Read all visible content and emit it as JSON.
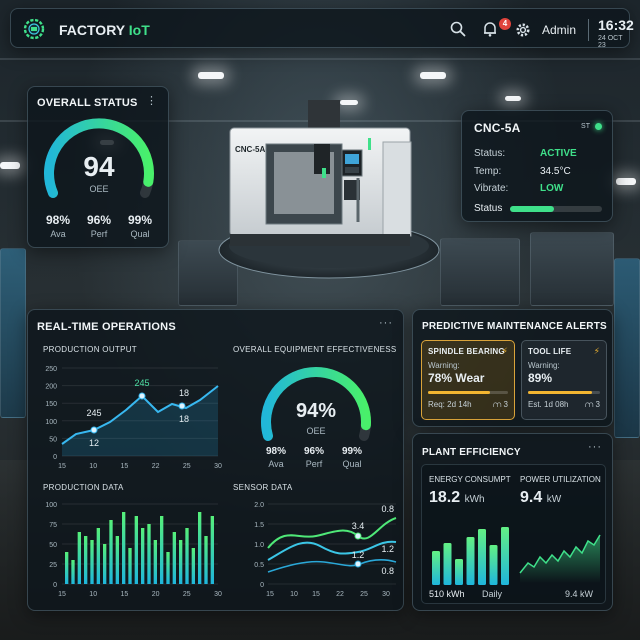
{
  "header": {
    "brand_main": "FACTORY",
    "brand_accent": "IoT",
    "notifications_count": "4",
    "user_label": "Admin",
    "time": "16:32",
    "date": "24 OCT 23",
    "icons": [
      "search-icon",
      "bell-icon",
      "gear-icon"
    ]
  },
  "overall_status": {
    "title": "OVERALL STATUS",
    "value": "94",
    "value_fraction": 0.94,
    "label": "OEE",
    "kpis": [
      {
        "value": "98%",
        "label": "Ava"
      },
      {
        "value": "96%",
        "label": "Perf"
      },
      {
        "value": "99%",
        "label": "Qual"
      }
    ]
  },
  "machine": {
    "model_label": "CNC-5A"
  },
  "cnc_info": {
    "name": "CNC-5A",
    "tag": "ST",
    "rows": [
      {
        "key": "Status:",
        "value": "ACTIVE"
      },
      {
        "key": "Temp:",
        "value": "34.5°C"
      },
      {
        "key": "Vibrate:",
        "value": "LOW"
      }
    ],
    "status_label": "Status",
    "status_fraction": 0.48,
    "colors": {
      "active": "#3fe08a",
      "text": "#ffffff"
    }
  },
  "operations": {
    "title": "REAL-TIME OPERATIONS",
    "production_output": {
      "title": "PRODUCTION OUTPUT",
      "y_ticks": [
        "250",
        "200",
        "150",
        "100",
        "50",
        "0"
      ],
      "x_ticks": [
        "15",
        "10",
        "15",
        "22",
        "25",
        "30"
      ],
      "annotations": [
        "245",
        "12",
        "245",
        "18",
        "18"
      ]
    },
    "oee": {
      "title": "OVERALL EQUIPMENT EFFECTIVENESS",
      "value": "94%",
      "value_fraction": 0.94,
      "label": "OEE",
      "kpis": [
        {
          "value": "98%",
          "label": "Ava"
        },
        {
          "value": "96%",
          "label": "Perf"
        },
        {
          "value": "99%",
          "label": "Qual"
        }
      ]
    },
    "production_data": {
      "title": "PRODUCTION DATA",
      "y_ticks": [
        "100",
        "75",
        "50",
        "25",
        "0"
      ],
      "x_ticks": [
        "15",
        "10",
        "15",
        "20",
        "25",
        "30"
      ]
    },
    "sensor_data": {
      "title": "SENSOR DATA",
      "y_ticks": [
        "2.0",
        "1.5",
        "1.0",
        "0.5",
        "0"
      ],
      "x_ticks": [
        "15",
        "10",
        "15",
        "22",
        "25",
        "30"
      ],
      "annotations": [
        "0.8",
        "3.4",
        "1.2",
        "1.2",
        "0.8"
      ]
    }
  },
  "predictive": {
    "title": "PREDICTIVE MAINTENANCE ALERTS",
    "alerts": [
      {
        "name": "SPINDLE BEARING",
        "warning": "Warning:",
        "value": "78% Wear",
        "fraction": 0.78,
        "footer": "Req: 2d 14h",
        "count": "3"
      },
      {
        "name": "TOOL LIFE",
        "warning": "Warning:",
        "value": "89%",
        "fraction": 0.89,
        "footer": "Est. 1d 08h",
        "count": "3"
      }
    ]
  },
  "plant": {
    "title": "PLANT EFFICIENCY",
    "energy": {
      "title": "ENERGY CONSUMPT",
      "value": "18.2",
      "unit": "kWh",
      "foot_value": "510 kWh",
      "foot_label": "Daily"
    },
    "power": {
      "title": "POWER UTILIZATION",
      "value": "9.4",
      "unit": "kW",
      "foot_value": "9.4 kW"
    }
  }
}
